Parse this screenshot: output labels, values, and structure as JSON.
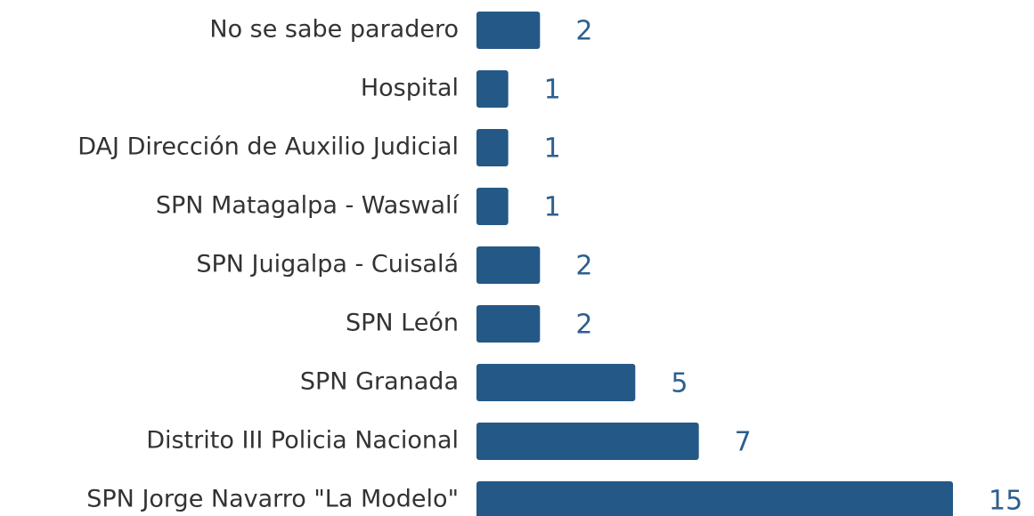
{
  "chart_data": {
    "type": "hbar",
    "categories": [
      "No se sabe paradero",
      "Hospital",
      "DAJ Dirección de Auxilio Judicial",
      "SPN Matagalpa - Waswalí",
      "SPN Juigalpa - Cuisalá",
      "SPN León",
      "SPN Granada",
      "Distrito III Policia Nacional",
      "SPN Jorge Navarro \"La Modelo\""
    ],
    "values": [
      2,
      1,
      1,
      1,
      2,
      2,
      5,
      7,
      15
    ],
    "color": "#245886"
  }
}
